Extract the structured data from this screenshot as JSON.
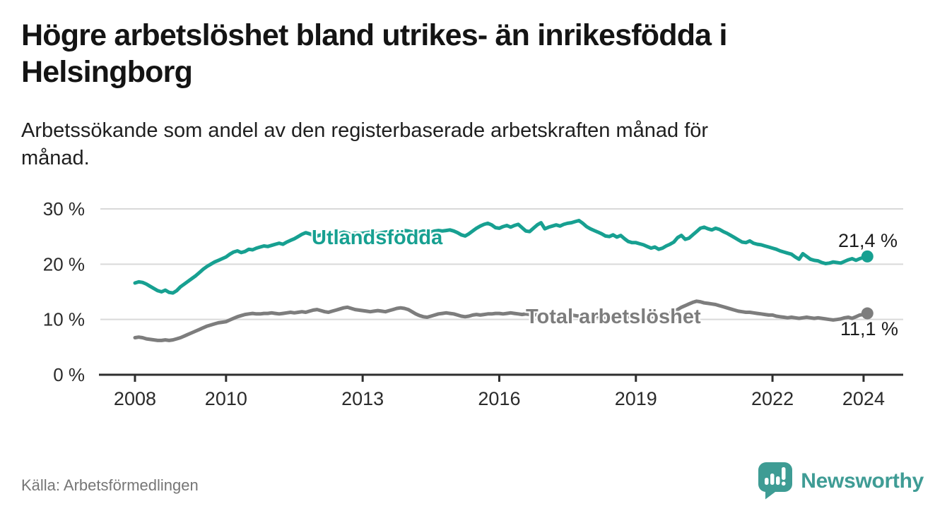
{
  "header": {
    "title": "Högre arbetslöshet bland utrikes- än inrikesfödda i\nHelsingborg",
    "subtitle": "Arbetssökande som andel av den registerbaserade arbetskraften månad för\nmånad."
  },
  "footer": {
    "source": "Källa: Arbetsförmedlingen",
    "brand": "Newsworthy"
  },
  "colors": {
    "accent_teal": "#17a091",
    "line_gray": "#7d7d7d",
    "grid": "#d9d9d9",
    "axis": "#2e2e2e",
    "logo_teal": "#3e9c94"
  },
  "chart_data": {
    "type": "line",
    "title": "Högre arbetslöshet bland utrikes- än inrikesfödda i Helsingborg",
    "subtitle": "Arbetssökande som andel av den registerbaserade arbetskraften månad för månad.",
    "source": "Källa: Arbetsförmedlingen",
    "frequency": "monthly",
    "start": "2008-01",
    "end": "2024-02",
    "x_range": [
      2007.24,
      2024.87
    ],
    "x_ticks": [
      2008,
      2010,
      2013,
      2016,
      2019,
      2022,
      2024
    ],
    "y_range": [
      0,
      30
    ],
    "y_ticks": [
      0,
      10,
      20,
      30
    ],
    "y_tick_suffix": " %",
    "grid": "horizontal",
    "legend_position": "inline-labels",
    "series": [
      {
        "name": "Utlandsfödda",
        "color": "#17a091",
        "end_label": "21,4 %",
        "end_value": 21.4,
        "values": [
          16.6,
          16.8,
          16.7,
          16.4,
          16.0,
          15.6,
          15.2,
          15.0,
          15.3,
          14.9,
          14.8,
          15.2,
          15.9,
          16.4,
          16.9,
          17.4,
          17.9,
          18.5,
          19.1,
          19.6,
          20.0,
          20.4,
          20.7,
          21.0,
          21.3,
          21.8,
          22.2,
          22.4,
          22.1,
          22.3,
          22.7,
          22.6,
          22.9,
          23.1,
          23.3,
          23.2,
          23.4,
          23.6,
          23.8,
          23.6,
          24.0,
          24.3,
          24.6,
          25.0,
          25.4,
          25.7,
          25.5,
          25.2,
          25.1,
          25.3,
          25.6,
          25.4,
          25.2,
          25.5,
          25.6,
          25.8,
          25.6,
          25.4,
          25.6,
          25.5,
          25.6,
          25.7,
          25.8,
          25.6,
          25.5,
          25.7,
          25.8,
          25.9,
          25.7,
          25.8,
          26.0,
          26.1,
          26.0,
          25.8,
          25.6,
          25.8,
          26.0,
          25.9,
          25.8,
          26.0,
          26.1,
          26.0,
          26.1,
          26.2,
          26.0,
          25.7,
          25.3,
          25.1,
          25.5,
          26.0,
          26.5,
          26.9,
          27.2,
          27.4,
          27.1,
          26.6,
          26.5,
          26.8,
          27.0,
          26.7,
          27.0,
          27.2,
          26.6,
          26.0,
          25.9,
          26.5,
          27.1,
          27.5,
          26.4,
          26.7,
          26.9,
          27.1,
          26.9,
          27.2,
          27.4,
          27.5,
          27.7,
          27.9,
          27.4,
          26.8,
          26.4,
          26.1,
          25.8,
          25.5,
          25.1,
          25.0,
          25.3,
          24.9,
          25.2,
          24.6,
          24.1,
          23.9,
          23.9,
          23.7,
          23.5,
          23.2,
          22.9,
          23.1,
          22.7,
          22.9,
          23.3,
          23.6,
          24.0,
          24.8,
          25.2,
          24.5,
          24.7,
          25.3,
          25.9,
          26.5,
          26.7,
          26.4,
          26.2,
          26.5,
          26.3,
          25.9,
          25.6,
          25.2,
          24.8,
          24.4,
          24.0,
          23.9,
          24.2,
          23.8,
          23.6,
          23.5,
          23.3,
          23.1,
          22.9,
          22.7,
          22.4,
          22.2,
          22.0,
          21.8,
          21.3,
          20.9,
          21.9,
          21.4,
          20.9,
          20.7,
          20.6,
          20.3,
          20.1,
          20.2,
          20.4,
          20.3,
          20.2,
          20.5,
          20.8,
          21.0,
          20.7,
          21.0,
          21.2,
          21.4
        ]
      },
      {
        "name": "Total arbetslöshet",
        "color": "#7d7d7d",
        "end_label": "11,1 %",
        "end_value": 11.1,
        "values": [
          6.7,
          6.8,
          6.7,
          6.5,
          6.4,
          6.3,
          6.2,
          6.2,
          6.3,
          6.2,
          6.3,
          6.5,
          6.7,
          7.0,
          7.3,
          7.6,
          7.9,
          8.2,
          8.5,
          8.8,
          9.0,
          9.2,
          9.4,
          9.5,
          9.6,
          9.9,
          10.2,
          10.5,
          10.7,
          10.9,
          11.0,
          11.1,
          11.0,
          11.0,
          11.1,
          11.1,
          11.2,
          11.1,
          11.0,
          11.1,
          11.2,
          11.3,
          11.2,
          11.3,
          11.4,
          11.3,
          11.5,
          11.7,
          11.8,
          11.6,
          11.4,
          11.3,
          11.5,
          11.7,
          11.9,
          12.1,
          12.2,
          12.0,
          11.8,
          11.7,
          11.6,
          11.5,
          11.4,
          11.5,
          11.6,
          11.5,
          11.4,
          11.6,
          11.8,
          12.0,
          12.1,
          12.0,
          11.8,
          11.4,
          11.0,
          10.7,
          10.5,
          10.4,
          10.6,
          10.8,
          11.0,
          11.1,
          11.2,
          11.1,
          11.0,
          10.8,
          10.6,
          10.5,
          10.6,
          10.8,
          10.9,
          10.8,
          10.9,
          11.0,
          11.0,
          11.1,
          11.1,
          11.0,
          11.1,
          11.2,
          11.1,
          11.0,
          10.9,
          11.0,
          10.9,
          10.8,
          10.9,
          11.0,
          10.9,
          10.8,
          10.9,
          11.0,
          10.9,
          10.8,
          10.7,
          10.8,
          10.7,
          10.6,
          10.7,
          10.8,
          10.7,
          10.6,
          10.5,
          10.4,
          10.3,
          10.4,
          10.5,
          10.4,
          10.3,
          10.4,
          10.5,
          10.6,
          10.5,
          10.4,
          10.5,
          10.6,
          10.5,
          10.6,
          10.7,
          10.8,
          10.9,
          11.1,
          11.4,
          11.8,
          12.2,
          12.5,
          12.8,
          13.1,
          13.3,
          13.2,
          13.0,
          12.9,
          12.8,
          12.7,
          12.5,
          12.3,
          12.1,
          11.9,
          11.7,
          11.5,
          11.4,
          11.3,
          11.3,
          11.2,
          11.1,
          11.0,
          10.9,
          10.8,
          10.8,
          10.6,
          10.5,
          10.4,
          10.3,
          10.4,
          10.3,
          10.2,
          10.3,
          10.4,
          10.3,
          10.2,
          10.3,
          10.2,
          10.1,
          10.0,
          9.9,
          10.0,
          10.1,
          10.3,
          10.4,
          10.2,
          10.5,
          10.8,
          10.9,
          11.1
        ]
      }
    ]
  }
}
